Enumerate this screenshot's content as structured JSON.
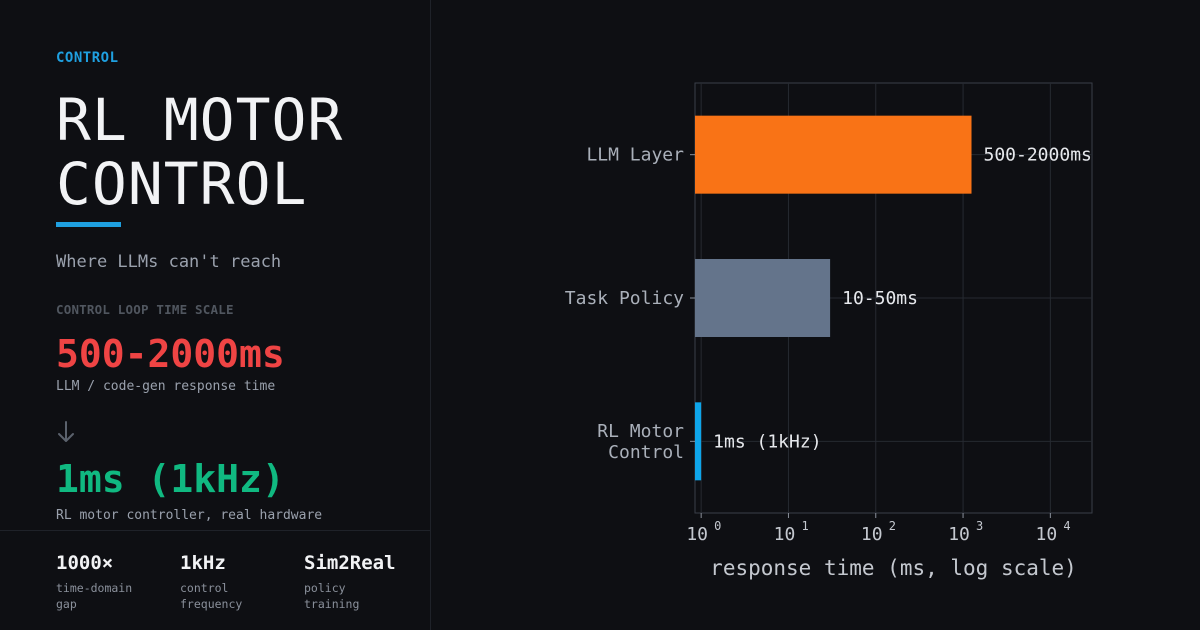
{
  "header": {
    "eyebrow": "CONTROL",
    "title_line1": "RL MOTOR",
    "title_line2": "CONTROL",
    "subtitle": "Where LLMs can't reach"
  },
  "comparison": {
    "section_label": "CONTROL LOOP TIME SCALE",
    "slow_value": "500-2000ms",
    "slow_caption": "LLM / code-gen response time",
    "arrow_icon": "arrow-down-icon",
    "fast_value": "1ms (1kHz)",
    "fast_caption": "RL motor controller, real hardware"
  },
  "stats": [
    {
      "value": "1000×",
      "label": "time-domain\ngap"
    },
    {
      "value": "1kHz",
      "label": "control\nfrequency"
    },
    {
      "value": "Sim2Real",
      "label": "policy\ntraining"
    }
  ],
  "colors": {
    "accent": "#1fa0e0",
    "red": "#ef4444",
    "green": "#10b981",
    "bar_llm": "#f97316",
    "bar_task": "#64748b",
    "bar_rl": "#0ea5e9"
  },
  "chart_data": {
    "type": "bar",
    "orientation": "horizontal",
    "categories": [
      "LLM Layer",
      "Task Policy",
      "RL Motor\nControl"
    ],
    "values": [
      1250,
      30,
      1
    ],
    "data_labels": [
      "500-2000ms",
      "10-50ms",
      "1ms (1kHz)"
    ],
    "bar_colors": [
      "#f97316",
      "#64748b",
      "#0ea5e9"
    ],
    "xlabel": "response time (ms, log scale)",
    "xscale": "log",
    "xlim": [
      0.85,
      30000
    ],
    "xticks": [
      1,
      10,
      100,
      1000,
      10000
    ],
    "xtick_labels": [
      "10",
      "10",
      "10",
      "10",
      "10"
    ],
    "xtick_exponents": [
      "0",
      "1",
      "2",
      "3",
      "4"
    ],
    "grid": true
  }
}
